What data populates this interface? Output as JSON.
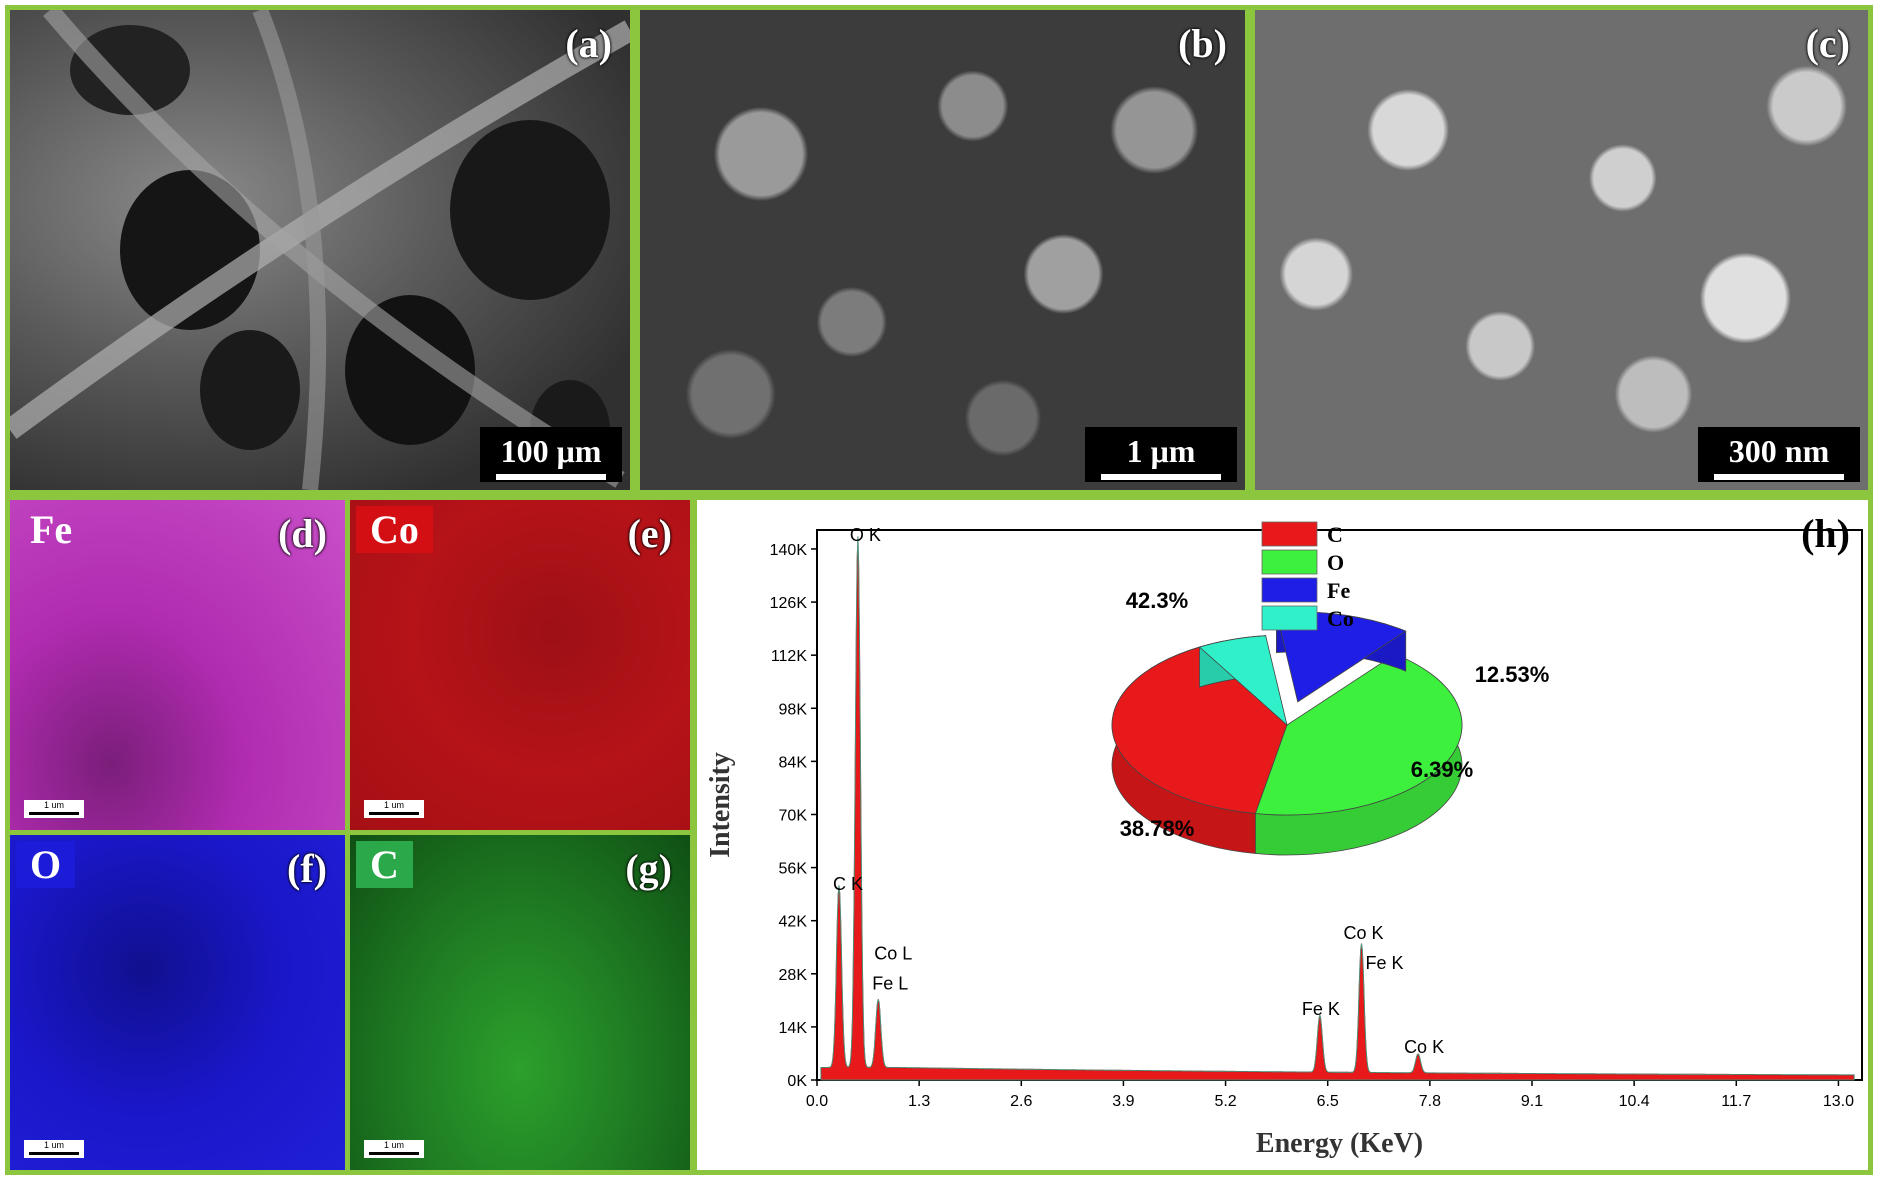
{
  "sem": [
    {
      "label": "(a)",
      "scale": "100 μm"
    },
    {
      "label": "(b)",
      "scale": "1 μm"
    },
    {
      "label": "(c)",
      "scale": "300 nm"
    }
  ],
  "maps": [
    {
      "label": "(d)",
      "element": "Fe",
      "color": "#c22fc2",
      "tag_bg": "transparent",
      "scale": "1 um"
    },
    {
      "label": "(e)",
      "element": "Co",
      "color": "#b01218",
      "tag_bg": "#d40f14",
      "scale": "1 um"
    },
    {
      "label": "(f)",
      "element": "O",
      "color": "#1a17c9",
      "tag_bg": "#1c1cd8",
      "scale": "1 um"
    },
    {
      "label": "(g)",
      "element": "C",
      "color": "#1e7a22",
      "tag_bg": "#2aa84a",
      "scale": "1 um"
    }
  ],
  "chart_panel_label": "(h)",
  "chart_data": [
    {
      "type": "area",
      "xlabel": "Energy (KeV)",
      "ylabel": "Intensity",
      "xlim": [
        0,
        13.3
      ],
      "ylim": [
        0,
        145000
      ],
      "x_ticks": [
        "0.0",
        "1.3",
        "2.6",
        "3.9",
        "5.2",
        "6.5",
        "7.8",
        "9.1",
        "10.4",
        "11.7",
        "13.0"
      ],
      "y_ticks": [
        "0K",
        "14K",
        "28K",
        "42K",
        "56K",
        "70K",
        "84K",
        "98K",
        "112K",
        "126K",
        "140K"
      ],
      "peaks": [
        {
          "label": "C K",
          "x": 0.28,
          "y": 48000
        },
        {
          "label": "O K",
          "x": 0.52,
          "y": 140000
        },
        {
          "label": "Co L",
          "x": 0.78,
          "y": 18000,
          "label2": "Fe L"
        },
        {
          "label": "Fe K",
          "x": 6.4,
          "y": 15000
        },
        {
          "label": "Co K",
          "x": 6.93,
          "y": 34000,
          "label2": "Fe K"
        },
        {
          "label": "Co K",
          "x": 7.65,
          "y": 5000
        }
      ]
    },
    {
      "type": "pie",
      "legend_position": "top-right",
      "slices": [
        {
          "name": "C",
          "value": 38.78,
          "label": "38.78%",
          "color": "#e8191b"
        },
        {
          "name": "O",
          "value": 42.3,
          "label": "42.3%",
          "color": "#3ef03e"
        },
        {
          "name": "Fe",
          "value": 12.53,
          "label": "12.53%",
          "color": "#1e1ee6"
        },
        {
          "name": "Co",
          "value": 6.39,
          "label": "6.39%",
          "color": "#2ff0c8"
        }
      ]
    }
  ]
}
